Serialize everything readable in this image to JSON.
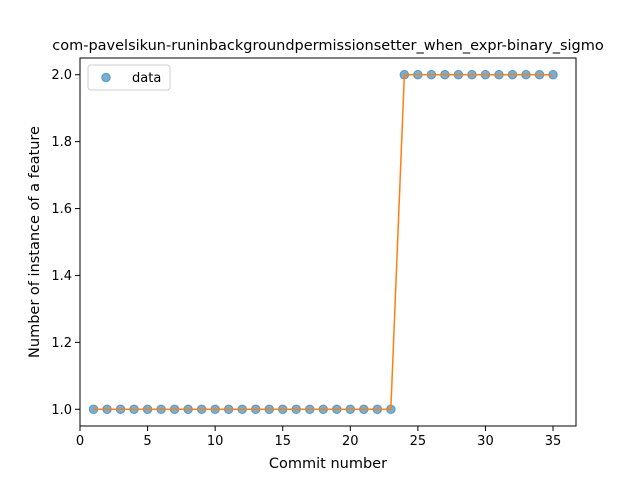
{
  "chart_data": {
    "type": "line",
    "title": "com-pavelsikun-runinbackgroundpermissionsetter_when_expr-binary_sigmo",
    "xlabel": "Commit number",
    "ylabel": "Number of instance of a feature",
    "xlim": [
      0,
      36.7
    ],
    "ylim": [
      0.95,
      2.05
    ],
    "xticks": [
      0,
      5,
      10,
      15,
      20,
      25,
      30,
      35
    ],
    "yticks": [
      1.0,
      1.2,
      1.4,
      1.6,
      1.8,
      2.0
    ],
    "xtick_labels": [
      "0",
      "5",
      "10",
      "15",
      "20",
      "25",
      "30",
      "35"
    ],
    "ytick_labels": [
      "1.0",
      "1.2",
      "1.4",
      "1.6",
      "1.8",
      "2.0"
    ],
    "legend": {
      "placement": "top-left",
      "entries": [
        "data"
      ]
    },
    "grid": false,
    "series": [
      {
        "name": "data",
        "style": "markers",
        "color": "#1f77b4",
        "x": [
          1,
          2,
          3,
          4,
          5,
          6,
          7,
          8,
          9,
          10,
          11,
          12,
          13,
          14,
          15,
          16,
          17,
          18,
          19,
          20,
          21,
          22,
          23,
          24,
          25,
          26,
          27,
          28,
          29,
          30,
          31,
          32,
          33,
          34,
          35
        ],
        "y": [
          1,
          1,
          1,
          1,
          1,
          1,
          1,
          1,
          1,
          1,
          1,
          1,
          1,
          1,
          1,
          1,
          1,
          1,
          1,
          1,
          1,
          1,
          1,
          2,
          2,
          2,
          2,
          2,
          2,
          2,
          2,
          2,
          2,
          2,
          2
        ]
      },
      {
        "style": "line",
        "color": "#ff7f0e",
        "x": [
          1,
          2,
          3,
          4,
          5,
          6,
          7,
          8,
          9,
          10,
          11,
          12,
          13,
          14,
          15,
          16,
          17,
          18,
          19,
          20,
          21,
          22,
          23,
          24,
          25,
          26,
          27,
          28,
          29,
          30,
          31,
          32,
          33,
          34,
          35
        ],
        "y": [
          1,
          1,
          1,
          1,
          1,
          1,
          1,
          1,
          1,
          1,
          1,
          1,
          1,
          1,
          1,
          1,
          1,
          1,
          1,
          1,
          1,
          1,
          1,
          2,
          2,
          2,
          2,
          2,
          2,
          2,
          2,
          2,
          2,
          2,
          2
        ]
      }
    ]
  }
}
